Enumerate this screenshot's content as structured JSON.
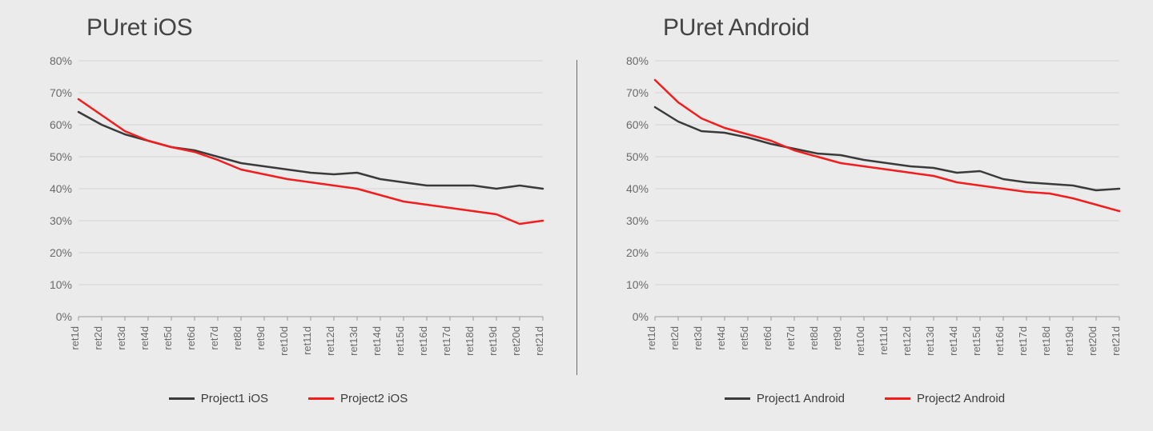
{
  "background_color": "#ebebeb",
  "grid_color": "#d6d6d6",
  "axis_color": "#9a9a9a",
  "tick_label_color": "#6a6a6a",
  "x_categories": [
    "ret1d",
    "ret2d",
    "ret3d",
    "ret4d",
    "ret5d",
    "ret6d",
    "ret7d",
    "ret8d",
    "ret9d",
    "ret10d",
    "ret11d",
    "ret12d",
    "ret13d",
    "ret14d",
    "ret15d",
    "ret16d",
    "ret17d",
    "ret18d",
    "ret19d",
    "ret20d",
    "ret21d"
  ],
  "y_ticks": [
    0,
    10,
    20,
    30,
    40,
    50,
    60,
    70,
    80
  ],
  "y_tick_labels": [
    "0%",
    "10%",
    "20%",
    "30%",
    "40%",
    "50%",
    "60%",
    "70%",
    "80%"
  ],
  "ylim": [
    0,
    80
  ],
  "tick_fontsize": 14,
  "xtick_fontsize": 13,
  "title_fontsize": 30,
  "line_width": 2.5,
  "panels": [
    {
      "title": "PUret iOS",
      "type": "line",
      "series": [
        {
          "name": "Project1 iOS",
          "color": "#3a3a3a",
          "values": [
            64,
            60,
            57,
            55,
            53,
            52,
            50,
            48,
            47,
            46,
            45,
            44.5,
            45,
            43,
            42,
            41,
            41,
            41,
            40,
            41,
            40
          ]
        },
        {
          "name": "Project2 iOS",
          "color": "#f21d1d",
          "values": [
            68,
            63,
            58,
            55,
            53,
            51.5,
            49,
            46,
            44.5,
            43,
            42,
            41,
            40,
            38,
            36,
            35,
            34,
            33,
            32,
            29,
            30
          ]
        }
      ],
      "legend": [
        {
          "label": "Project1 iOS",
          "color": "#3a3a3a"
        },
        {
          "label": "Project2 iOS",
          "color": "#f21d1d"
        }
      ]
    },
    {
      "title": "PUret Android",
      "type": "line",
      "series": [
        {
          "name": "Project1 Android",
          "color": "#3a3a3a",
          "values": [
            65.5,
            61,
            58,
            57.5,
            56,
            54,
            52.5,
            51,
            50.5,
            49,
            48,
            47,
            46.5,
            45,
            45.5,
            43,
            42,
            41.5,
            41,
            39.5,
            40
          ]
        },
        {
          "name": "Project2 Android",
          "color": "#f21d1d",
          "values": [
            74,
            67,
            62,
            59,
            57,
            55,
            52,
            50,
            48,
            47,
            46,
            45,
            44,
            42,
            41,
            40,
            39,
            38.5,
            37,
            35,
            33
          ]
        }
      ],
      "legend": [
        {
          "label": "Project1 Android",
          "color": "#3a3a3a"
        },
        {
          "label": "Project2 Android",
          "color": "#f21d1d"
        }
      ]
    }
  ]
}
